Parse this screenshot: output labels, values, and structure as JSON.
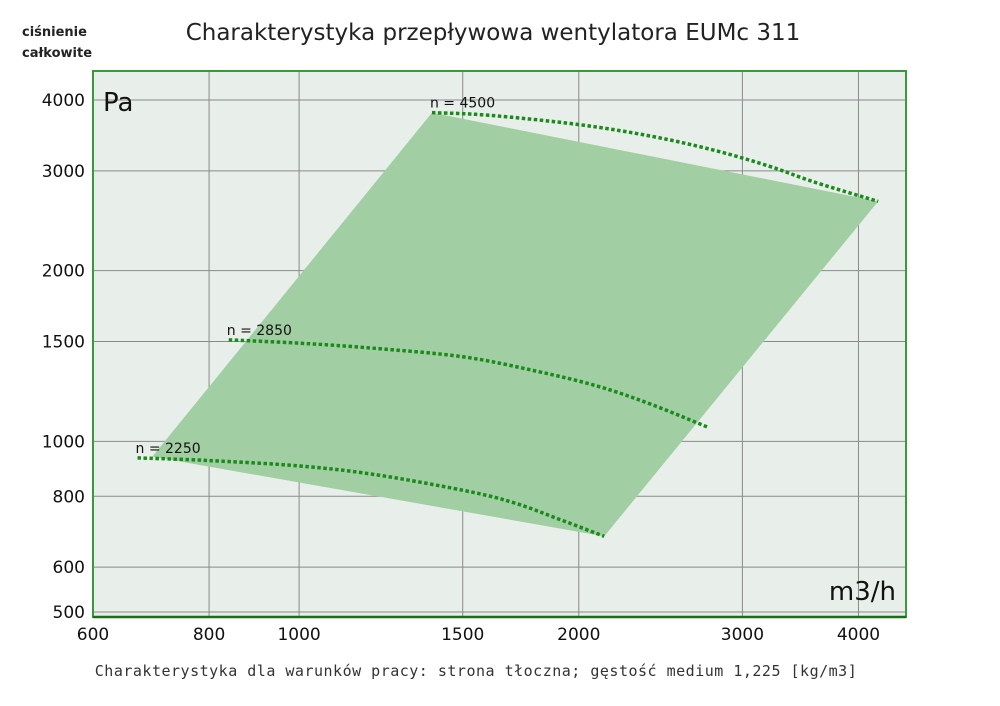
{
  "header": {
    "ylabel_line1": "ciśnienie",
    "ylabel_line2": "całkowite"
  },
  "chart_data": {
    "type": "line",
    "title": "Charakterystyka przepływowa wentylatora EUMc 311",
    "caption": "Charakterystyka dla warunków pracy: strona tłoczna; gęstość medium 1,225 [kg/m3]",
    "y_unit": "Pa",
    "x_unit": "m3/h",
    "x_scale": "log",
    "y_scale": "log",
    "xlim": [
      600,
      4500
    ],
    "ylim": [
      490,
      4500
    ],
    "x_ticks": [
      600,
      800,
      1000,
      1500,
      2000,
      3000,
      4000
    ],
    "x_tick_labels": [
      "600",
      "800",
      "1000",
      "1500",
      "2000",
      "3000",
      "4000"
    ],
    "y_ticks": [
      500,
      600,
      800,
      1000,
      1500,
      2000,
      3000,
      4000
    ],
    "y_tick_labels": [
      "500",
      "600",
      "800",
      "1000",
      "1500",
      "2000",
      "3000",
      "4000"
    ],
    "grid": true,
    "legend": "none",
    "colors": {
      "plot_bg": "#e8efea",
      "frame": "#3a9a3a",
      "grid": "#8a8a8a",
      "area_fill": "#a1cfa3",
      "curve": "#1a8a1a"
    },
    "operating_area": {
      "x": [
        695,
        1390,
        4200,
        2130
      ],
      "y": [
        940,
        3800,
        2650,
        680
      ]
    },
    "series": [
      {
        "name": "n = 4500",
        "x": [
          1390,
          1600,
          2000,
          2400,
          2800,
          3200,
          3600,
          4200
        ],
        "y": [
          3800,
          3760,
          3620,
          3450,
          3260,
          3060,
          2860,
          2650
        ]
      },
      {
        "name": "n = 2850",
        "x": [
          840,
          1000,
          1200,
          1500,
          1800,
          2100,
          2400,
          2750
        ],
        "y": [
          1510,
          1490,
          1460,
          1410,
          1330,
          1250,
          1160,
          1060
        ]
      },
      {
        "name": "n = 2250",
        "x": [
          670,
          800,
          1000,
          1200,
          1500,
          1700,
          1900,
          2130
        ],
        "y": [
          935,
          925,
          905,
          875,
          820,
          780,
          730,
          680
        ]
      }
    ]
  }
}
